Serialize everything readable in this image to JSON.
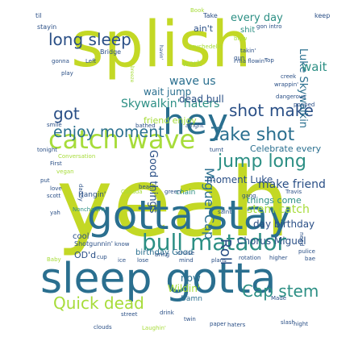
{
  "cloud": {
    "words": [
      {
        "text": "yeah",
        "color": "#c3d825"
      },
      {
        "text": "splish",
        "color": "#c3d825"
      },
      {
        "text": "gotta stay",
        "color": "#2a6f8f"
      },
      {
        "text": "sleep gotta",
        "color": "#2a6f8f"
      },
      {
        "text": "hey",
        "color": "#2a6f8f"
      },
      {
        "text": "catch wave",
        "color": "#a7dc3a"
      },
      {
        "text": "bull matador",
        "color": "#2c8f84"
      },
      {
        "text": "shot",
        "color": "#2a4f86"
      },
      {
        "text": "make",
        "color": "#2a4f86"
      },
      {
        "text": "Take shot",
        "color": "#2a6f8f"
      },
      {
        "text": "jump long",
        "color": "#2c8f84"
      },
      {
        "text": "enjoy moment",
        "color": "#2a6f8f"
      },
      {
        "text": "long sleep",
        "color": "#2a4f86"
      },
      {
        "text": "Quick dead",
        "color": "#a7dc3a"
      },
      {
        "text": "Cap stem",
        "color": "#2c8f84"
      },
      {
        "text": "got",
        "color": "#2a4f86"
      },
      {
        "text": "Miguel Cap",
        "color": "#2a6f8f"
      },
      {
        "text": "Skywalkin' haters",
        "color": "#2c8f84"
      },
      {
        "text": "Luke Skywalkin",
        "color": "#2a6f8f"
      },
      {
        "text": "every day",
        "color": "#2c8f84"
      },
      {
        "text": "moment Luke",
        "color": "#2a4f86"
      },
      {
        "text": "make friend",
        "color": "#2a4f86"
      },
      {
        "text": "Celebrate every",
        "color": "#2a6f8f"
      },
      {
        "text": "stem catch",
        "color": "#a7dc3a"
      },
      {
        "text": "day birthday",
        "color": "#2a4f86"
      },
      {
        "text": "Chorus Miguel",
        "color": "#2a4f86"
      },
      {
        "text": "friend enjoy",
        "color": "#a7dc3a"
      },
      {
        "text": "things come",
        "color": "#2c8f84"
      },
      {
        "text": "birthday Good",
        "color": "#2a6f8f"
      },
      {
        "text": "Good things",
        "color": "#2a4f86"
      },
      {
        "text": "wave us",
        "color": "#2a6f8f"
      },
      {
        "text": "wait jump",
        "color": "#2a6f8f"
      },
      {
        "text": "dead bull",
        "color": "#2a4f86"
      },
      {
        "text": "Roll",
        "color": "#2a4f86"
      },
      {
        "text": "Wildin'",
        "color": "#a7dc3a"
      },
      {
        "text": "ain't",
        "color": "#2a4f86"
      },
      {
        "text": "now",
        "color": "#2a6f8f"
      },
      {
        "text": "wait",
        "color": "#2c8f84"
      },
      {
        "text": "work",
        "color": "#a7dc3a"
      },
      {
        "text": "cool",
        "color": "#2a4f86"
      },
      {
        "text": "OD'd",
        "color": "#2a4f86"
      },
      {
        "text": "Damn",
        "color": "#2a6f8f"
      },
      {
        "text": "chain",
        "color": "#2c8f84"
      },
      {
        "text": "shit",
        "color": "#2c8f84"
      },
      {
        "text": "Hangin'",
        "color": "#2a4f86"
      },
      {
        "text": "Nonchalant",
        "color": "#2c8f84"
      },
      {
        "text": "Shotgunnin'",
        "color": "#2a4f86"
      },
      {
        "text": "til",
        "color": "#2a4f86"
      },
      {
        "text": "stayin",
        "color": "#2a4f86"
      },
      {
        "text": "keep",
        "color": "#2a4f86"
      },
      {
        "text": "Take",
        "color": "#2a4f86"
      },
      {
        "text": "Book",
        "color": "#a7dc3a"
      },
      {
        "text": "blow",
        "color": "#a7dc3a"
      },
      {
        "text": "gun",
        "color": "#2a4f86"
      },
      {
        "text": "gon intro",
        "color": "#2a4f86"
      },
      {
        "text": "takin'",
        "color": "#2a4f86"
      },
      {
        "text": "i'ma flowin'",
        "color": "#2a4f86"
      },
      {
        "text": "Top",
        "color": "#2a4f86"
      },
      {
        "text": "Bridge",
        "color": "#2a4f86"
      },
      {
        "text": "psychedelic",
        "color": "#a7dc3a"
      },
      {
        "text": "havin'",
        "color": "#2a4f86"
      },
      {
        "text": "breeze",
        "color": "#a7dc3a"
      },
      {
        "text": "gonna",
        "color": "#2a4f86"
      },
      {
        "text": "Left",
        "color": "#2a4f86"
      },
      {
        "text": "play",
        "color": "#2a4f86"
      },
      {
        "text": "creek",
        "color": "#2a4f86"
      },
      {
        "text": "dangerous",
        "color": "#2a4f86"
      },
      {
        "text": "popped",
        "color": "#2a4f86"
      },
      {
        "text": "wrappin'",
        "color": "#2a4f86"
      },
      {
        "text": "alright",
        "color": "#2a4f86"
      },
      {
        "text": "bathed",
        "color": "#2a4f86"
      },
      {
        "text": "smile",
        "color": "#2a4f86"
      },
      {
        "text": "tonight",
        "color": "#2a4f86"
      },
      {
        "text": "Conversation",
        "color": "#a7dc3a"
      },
      {
        "text": "First",
        "color": "#2a4f86"
      },
      {
        "text": "vegan",
        "color": "#a7dc3a"
      },
      {
        "text": "put",
        "color": "#2a4f86"
      },
      {
        "text": "love",
        "color": "#2a4f86"
      },
      {
        "text": "scott",
        "color": "#2a4f86"
      },
      {
        "text": "yah",
        "color": "#2a4f86"
      },
      {
        "text": "daddy",
        "color": "#2a4f86"
      },
      {
        "text": "Canada",
        "color": "#a7dc3a"
      },
      {
        "text": "beach",
        "color": "#2a4f86"
      },
      {
        "text": "green",
        "color": "#2a4f86"
      },
      {
        "text": "Travis",
        "color": "#2a4f86"
      },
      {
        "text": "gang",
        "color": "#2a4f86"
      },
      {
        "text": "turnt",
        "color": "#2a4f86"
      },
      {
        "text": "saint",
        "color": "#2a4f86"
      },
      {
        "text": "need",
        "color": "#2a4f86"
      },
      {
        "text": "know",
        "color": "#2a4f86"
      },
      {
        "text": "bring",
        "color": "#2a4f86"
      },
      {
        "text": "cruise",
        "color": "#2a4f86"
      },
      {
        "text": "plans",
        "color": "#2a4f86"
      },
      {
        "text": "rotation",
        "color": "#2a4f86"
      },
      {
        "text": "higher",
        "color": "#2a4f86"
      },
      {
        "text": "bae",
        "color": "#2a4f86"
      },
      {
        "text": "pulice",
        "color": "#2a4f86"
      },
      {
        "text": "Baby",
        "color": "#a7dc3a"
      },
      {
        "text": "cup",
        "color": "#2a4f86"
      },
      {
        "text": "ice",
        "color": "#2a4f86"
      },
      {
        "text": "lose",
        "color": "#2a4f86"
      },
      {
        "text": "mind",
        "color": "#2a4f86"
      },
      {
        "text": "street",
        "color": "#2a4f86"
      },
      {
        "text": "drink",
        "color": "#2a4f86"
      },
      {
        "text": "clouds",
        "color": "#2a4f86"
      },
      {
        "text": "Laughin'",
        "color": "#a7dc3a"
      },
      {
        "text": "twin",
        "color": "#2a4f86"
      },
      {
        "text": "paper",
        "color": "#2a4f86"
      },
      {
        "text": "haters",
        "color": "#2a4f86"
      },
      {
        "text": "night",
        "color": "#2a4f86"
      },
      {
        "text": "slash",
        "color": "#2a4f86"
      },
      {
        "text": "Made",
        "color": "#2a4f86"
      }
    ]
  }
}
